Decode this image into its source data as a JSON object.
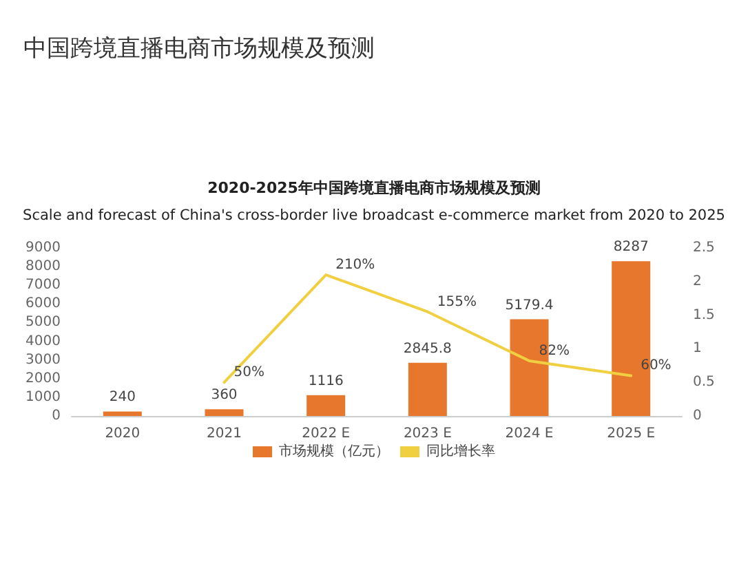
{
  "chart_data": {
    "type": "bar",
    "title": "中国跨境直播电商市场规模及预测",
    "subtitle": "2020-2025年中国跨境直播电商市场规模及预测",
    "annotations": [
      "Scale and forecast of China's cross-border live broadcast e-commerce market from 2020 to 2025"
    ],
    "categories": [
      "2020",
      "2021",
      "2022 E",
      "2023 E",
      "2024 E",
      "2025 E"
    ],
    "series": [
      {
        "name": "市场规模（亿元）",
        "color": "#e8772e",
        "values": [
          240,
          360,
          1116,
          2845.8,
          5179.4,
          8287
        ],
        "value_labels": [
          "240",
          "360",
          "1116",
          "2845.8",
          "5179.4",
          "8287"
        ]
      },
      {
        "name": "同比增长率",
        "type": "line",
        "axis": "y2",
        "color": "#f0d040",
        "values": [
          null,
          0.5,
          2.1,
          1.55,
          0.82,
          0.6
        ],
        "value_labels": [
          null,
          "50%",
          "210%",
          "155%",
          "82%",
          "60%"
        ]
      }
    ],
    "ylim": [
      0,
      9000
    ],
    "yticks": [
      0,
      1000,
      2000,
      3000,
      4000,
      5000,
      6000,
      7000,
      8000,
      9000
    ],
    "y2lim": [
      0,
      2.5
    ],
    "y2ticks": [
      0,
      0.5,
      1,
      1.5,
      2,
      2.5
    ],
    "grid": false,
    "legend": "bottom",
    "marker": "none",
    "line_style": "solid"
  }
}
